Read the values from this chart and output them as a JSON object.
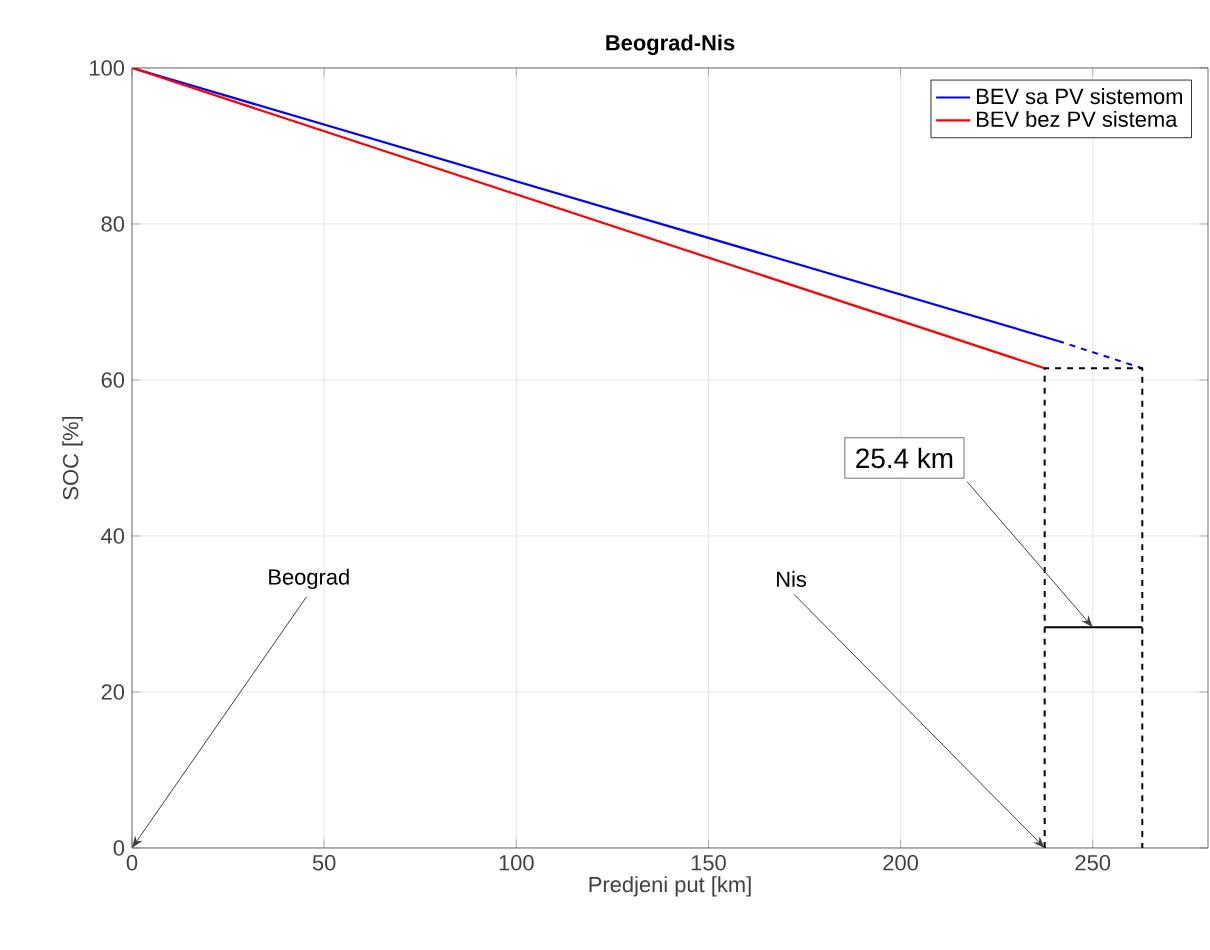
{
  "chart_data": {
    "type": "line",
    "title": "Beograd-Nis",
    "xlabel": "Predjeni put [km]",
    "ylabel": "SOC [%]",
    "xlim": [
      0,
      280
    ],
    "xticks": [
      0,
      50,
      100,
      150,
      200,
      250
    ],
    "ylim": [
      0,
      100
    ],
    "yticks": [
      0,
      20,
      40,
      60,
      80,
      100
    ],
    "grid": true,
    "legend": "top right",
    "line_style": "solid",
    "series": [
      {
        "name": "BEV sa PV sistemom",
        "color": "#0000ff",
        "x": [
          0,
          241
        ],
        "values": [
          100,
          65
        ]
      },
      {
        "name": "BEV bez PV sistema",
        "color": "#ff0000",
        "x": [
          0,
          237.5
        ],
        "values": [
          100,
          61.5
        ]
      },
      {
        "color": "#0000ff",
        "x": [
          241,
          262.9
        ],
        "values": [
          65,
          61.5
        ],
        "line_style": "dashed"
      },
      {
        "color": "#000000",
        "x": [
          237.5,
          237.5,
          262.9,
          262.9
        ],
        "values": [
          0,
          61.5,
          61.5,
          0
        ],
        "line_style": "dashed"
      },
      {
        "color": "#000000",
        "x": [
          237.5,
          262.9
        ],
        "values": [
          28.3,
          28.3
        ]
      }
    ],
    "annotations": [
      "Beograd",
      {
        "text": "Nis",
        "x": 237.5,
        "y": 0
      },
      {
        "text": "25.4 km",
        "x": 250,
        "y": 28.3
      }
    ]
  }
}
